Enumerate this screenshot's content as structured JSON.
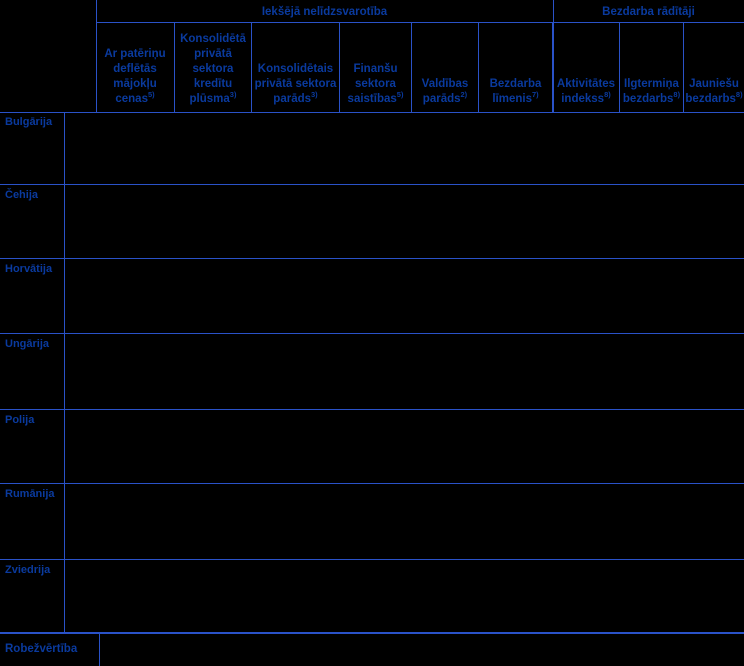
{
  "table": {
    "group_headers": [
      {
        "label": "Iekšējā nelīdzsvarotība",
        "column_span": 6
      },
      {
        "label": "Bezdarba rādītāji",
        "column_span": 3
      }
    ],
    "columns": [
      {
        "lines": [
          "Ar patēriņu",
          "deflētās",
          "mājokļu",
          "cenas"
        ],
        "footnote": "5)"
      },
      {
        "lines": [
          "Konsolidētā",
          "privātā",
          "sektora",
          "kredītu",
          "plūsma"
        ],
        "footnote": "3)"
      },
      {
        "lines": [
          "Konsolidētais",
          "privātā sektora",
          "parāds"
        ],
        "footnote": "3)"
      },
      {
        "lines": [
          "Finanšu",
          "sektora",
          "saistības"
        ],
        "footnote": "5)"
      },
      {
        "lines": [
          "Valdības",
          "parāds"
        ],
        "footnote": "2)"
      },
      {
        "lines": [
          "Bezdarba",
          "līmenis"
        ],
        "footnote": "7)"
      },
      {
        "lines": [
          "Aktivitātes",
          "indekss"
        ],
        "footnote": "8)"
      },
      {
        "lines": [
          "Ilgtermiņa",
          "bezdarbs"
        ],
        "footnote": "8)"
      },
      {
        "lines": [
          "Jauniešu",
          "bezdarbs"
        ],
        "footnote": "8)"
      }
    ],
    "rows": [
      {
        "label": "Bulgārija"
      },
      {
        "label": "Čehija"
      },
      {
        "label": "Horvātija"
      },
      {
        "label": "Ungārija"
      },
      {
        "label": "Polija"
      },
      {
        "label": "Rumānija"
      },
      {
        "label": "Zviedrija"
      }
    ],
    "footer": {
      "label": "Robežvērtība"
    },
    "colors": {
      "text": "#0a3a9e",
      "grid_line": "#2a52c8",
      "background": "#000000"
    }
  }
}
